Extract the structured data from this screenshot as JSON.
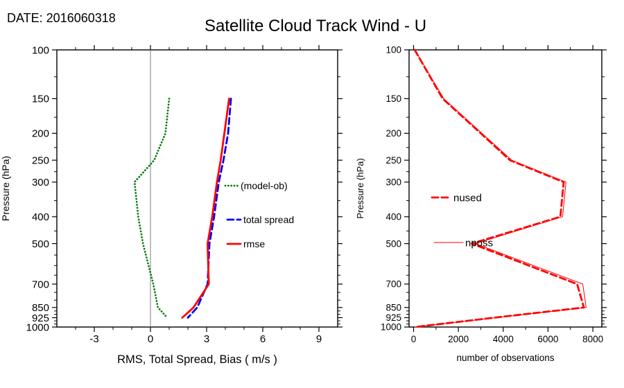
{
  "header": {
    "date": "DATE: 2016060318",
    "title": "Satellite Cloud Track Wind - U"
  },
  "colors": {
    "bias": "#0a7a0a",
    "spread": "#0000ff",
    "rmse": "#ff0000",
    "obs": "#ff0000",
    "zero_line": "#7f7f7f",
    "axis": "#000000"
  },
  "chart_data": [
    {
      "type": "line",
      "panel": "left",
      "title": "",
      "xlabel": "RMS, Total Spread, Bias ( m/s )",
      "ylabel": "Pressure (hPa)",
      "xlim": [
        -5,
        10
      ],
      "x_major_ticks": [
        -3,
        0,
        3,
        6,
        9
      ],
      "x_minor_step": 1,
      "y_scale": "log",
      "ylim": [
        100,
        1000
      ],
      "y_ticks": [
        100,
        150,
        200,
        250,
        300,
        400,
        500,
        700,
        850,
        925,
        1000
      ],
      "y_minor_ticks": [
        125,
        175,
        225,
        275,
        350,
        450,
        550,
        600,
        650,
        750,
        800,
        875,
        900,
        950,
        975
      ],
      "grid": false,
      "zero_line": true,
      "legend_position": "inside-right",
      "series": [
        {
          "name": "(model-ob)",
          "color": "#0a7a0a",
          "style": "dotted",
          "width": 2.8,
          "pressure": [
            150,
            200,
            250,
            300,
            400,
            500,
            700,
            850,
            925
          ],
          "values": [
            1.0,
            0.8,
            0.2,
            -0.85,
            -0.65,
            -0.4,
            0.15,
            0.4,
            0.9
          ]
        },
        {
          "name": "total spread",
          "color": "#0000ff",
          "style": "dashed",
          "width": 2.8,
          "pressure": [
            150,
            200,
            250,
            300,
            400,
            500,
            700,
            850,
            925
          ],
          "values": [
            4.3,
            4.15,
            3.9,
            3.65,
            3.4,
            3.15,
            3.05,
            2.5,
            2.0
          ]
        },
        {
          "name": "rmse",
          "color": "#ff0000",
          "style": "solid",
          "width": 2.8,
          "pressure": [
            150,
            200,
            250,
            300,
            400,
            500,
            700,
            850,
            925
          ],
          "values": [
            4.2,
            3.95,
            3.75,
            3.55,
            3.3,
            3.05,
            3.12,
            2.3,
            1.7
          ]
        }
      ]
    },
    {
      "type": "line",
      "panel": "right",
      "title": "",
      "xlabel": "number of observations",
      "ylabel": "Pressure (hPa)",
      "xlim": [
        -200,
        8400
      ],
      "x_major_ticks": [
        0,
        2000,
        4000,
        6000,
        8000
      ],
      "x_minor_step": 1000,
      "y_scale": "log",
      "ylim": [
        100,
        1000
      ],
      "y_ticks": [
        100,
        150,
        200,
        250,
        300,
        400,
        500,
        700,
        850,
        925,
        1000
      ],
      "y_minor_ticks": [
        125,
        175,
        225,
        275,
        350,
        450,
        550,
        600,
        650,
        750,
        800,
        875,
        900,
        950,
        975
      ],
      "grid": false,
      "zero_line": false,
      "legend_position": "inside-left",
      "series": [
        {
          "name": "nused",
          "color": "#ff0000",
          "style": "dashed",
          "width": 2.8,
          "pressure": [
            100,
            150,
            200,
            250,
            300,
            400,
            500,
            700,
            850,
            925,
            1000
          ],
          "values": [
            50,
            1300,
            3000,
            4300,
            6700,
            6550,
            2600,
            7300,
            7600,
            3600,
            50
          ]
        },
        {
          "name": "nposs",
          "color": "#ff0000",
          "style": "solid",
          "width": 1,
          "pressure": [
            100,
            150,
            200,
            250,
            300,
            400,
            500,
            700,
            850,
            925,
            1000
          ],
          "values": [
            60,
            1350,
            3050,
            4380,
            6800,
            6650,
            2750,
            7550,
            7700,
            3700,
            60
          ]
        }
      ]
    }
  ]
}
